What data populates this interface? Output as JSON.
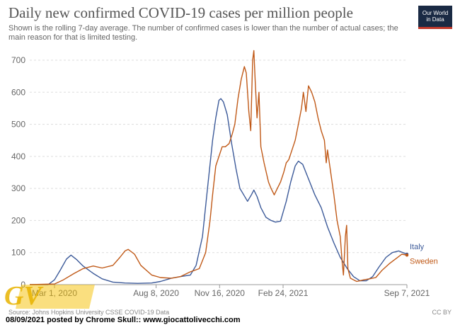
{
  "header": {
    "title": "Daily new confirmed COVID-19 cases per million people",
    "subtitle": "Shown is the rolling 7-day average. The number of confirmed cases is lower than the number of actual cases; the main reason for that is limited testing.",
    "logo_line1": "Our World",
    "logo_line2": "in Data"
  },
  "footer": {
    "source": "Source: Johns Hopkins University CSSE COVID-19 Data",
    "license": "CC BY",
    "credit": "08/09/2021 posted by Chrome Skull:: www.giocattolivecchi.com",
    "watermark": "GV"
  },
  "colors": {
    "italy": "#3c5a99",
    "sweden": "#c05917",
    "grid": "#dddddd",
    "axis_text": "#666666"
  },
  "chart_data": {
    "type": "line",
    "title": "Daily new confirmed COVID-19 cases per million people",
    "ylim": [
      0,
      700
    ],
    "yticks": [
      0,
      100,
      200,
      300,
      400,
      500,
      600,
      700
    ],
    "xlim": [
      "2020-01-22",
      "2021-09-07"
    ],
    "xticks": [
      {
        "date": "2020-03-01",
        "label": "Mar 1, 2020"
      },
      {
        "date": "2020-08-08",
        "label": "Aug 8, 2020"
      },
      {
        "date": "2020-11-16",
        "label": "Nov 16, 2020"
      },
      {
        "date": "2021-02-24",
        "label": "Feb 24, 2021"
      },
      {
        "date": "2021-09-07",
        "label": "Sep 7, 2021"
      }
    ],
    "grid": "horizontal dashed",
    "legend": "line-end labels",
    "series": [
      {
        "name": "Italy",
        "color": "#3c5a99",
        "points": [
          [
            "2020-01-22",
            0
          ],
          [
            "2020-02-20",
            0
          ],
          [
            "2020-03-01",
            15
          ],
          [
            "2020-03-10",
            45
          ],
          [
            "2020-03-20",
            80
          ],
          [
            "2020-03-27",
            92
          ],
          [
            "2020-04-05",
            78
          ],
          [
            "2020-04-15",
            58
          ],
          [
            "2020-05-01",
            35
          ],
          [
            "2020-05-15",
            18
          ],
          [
            "2020-06-01",
            8
          ],
          [
            "2020-06-20",
            5
          ],
          [
            "2020-07-10",
            4
          ],
          [
            "2020-08-01",
            5
          ],
          [
            "2020-08-15",
            10
          ],
          [
            "2020-09-01",
            20
          ],
          [
            "2020-09-15",
            25
          ],
          [
            "2020-10-01",
            30
          ],
          [
            "2020-10-10",
            60
          ],
          [
            "2020-10-20",
            150
          ],
          [
            "2020-10-28",
            300
          ],
          [
            "2020-11-05",
            450
          ],
          [
            "2020-11-10",
            520
          ],
          [
            "2020-11-15",
            575
          ],
          [
            "2020-11-18",
            580
          ],
          [
            "2020-11-22",
            570
          ],
          [
            "2020-11-28",
            530
          ],
          [
            "2020-12-05",
            440
          ],
          [
            "2020-12-12",
            360
          ],
          [
            "2020-12-18",
            300
          ],
          [
            "2020-12-24",
            280
          ],
          [
            "2020-12-30",
            260
          ],
          [
            "2021-01-05",
            280
          ],
          [
            "2021-01-09",
            295
          ],
          [
            "2021-01-14",
            275
          ],
          [
            "2021-01-20",
            240
          ],
          [
            "2021-01-28",
            210
          ],
          [
            "2021-02-05",
            200
          ],
          [
            "2021-02-12",
            195
          ],
          [
            "2021-02-20",
            198
          ],
          [
            "2021-03-01",
            260
          ],
          [
            "2021-03-08",
            320
          ],
          [
            "2021-03-15",
            370
          ],
          [
            "2021-03-20",
            385
          ],
          [
            "2021-03-27",
            375
          ],
          [
            "2021-04-05",
            330
          ],
          [
            "2021-04-15",
            280
          ],
          [
            "2021-04-25",
            240
          ],
          [
            "2021-05-05",
            180
          ],
          [
            "2021-05-15",
            130
          ],
          [
            "2021-05-25",
            85
          ],
          [
            "2021-06-05",
            50
          ],
          [
            "2021-06-15",
            25
          ],
          [
            "2021-06-25",
            12
          ],
          [
            "2021-07-05",
            12
          ],
          [
            "2021-07-15",
            25
          ],
          [
            "2021-07-25",
            55
          ],
          [
            "2021-08-05",
            85
          ],
          [
            "2021-08-15",
            100
          ],
          [
            "2021-08-25",
            105
          ],
          [
            "2021-09-07",
            95
          ]
        ]
      },
      {
        "name": "Sweden",
        "color": "#c05917",
        "points": [
          [
            "2020-01-22",
            0
          ],
          [
            "2020-03-01",
            2
          ],
          [
            "2020-03-15",
            15
          ],
          [
            "2020-04-01",
            35
          ],
          [
            "2020-04-15",
            50
          ],
          [
            "2020-05-01",
            58
          ],
          [
            "2020-05-15",
            52
          ],
          [
            "2020-06-01",
            60
          ],
          [
            "2020-06-12",
            85
          ],
          [
            "2020-06-20",
            105
          ],
          [
            "2020-06-25",
            110
          ],
          [
            "2020-07-05",
            95
          ],
          [
            "2020-07-15",
            60
          ],
          [
            "2020-08-01",
            30
          ],
          [
            "2020-08-15",
            22
          ],
          [
            "2020-09-01",
            20
          ],
          [
            "2020-09-15",
            25
          ],
          [
            "2020-10-01",
            40
          ],
          [
            "2020-10-15",
            50
          ],
          [
            "2020-10-25",
            100
          ],
          [
            "2020-11-01",
            200
          ],
          [
            "2020-11-05",
            280
          ],
          [
            "2020-11-10",
            370
          ],
          [
            "2020-11-15",
            400
          ],
          [
            "2020-11-20",
            430
          ],
          [
            "2020-11-25",
            430
          ],
          [
            "2020-12-01",
            440
          ],
          [
            "2020-12-06",
            470
          ],
          [
            "2020-12-10",
            500
          ],
          [
            "2020-12-15",
            580
          ],
          [
            "2020-12-20",
            640
          ],
          [
            "2020-12-25",
            680
          ],
          [
            "2020-12-28",
            660
          ],
          [
            "2021-01-01",
            540
          ],
          [
            "2021-01-04",
            480
          ],
          [
            "2021-01-07",
            700
          ],
          [
            "2021-01-09",
            730
          ],
          [
            "2021-01-11",
            640
          ],
          [
            "2021-01-14",
            520
          ],
          [
            "2021-01-17",
            600
          ],
          [
            "2021-01-20",
            430
          ],
          [
            "2021-01-25",
            380
          ],
          [
            "2021-02-01",
            320
          ],
          [
            "2021-02-05",
            300
          ],
          [
            "2021-02-10",
            280
          ],
          [
            "2021-02-15",
            300
          ],
          [
            "2021-02-20",
            320
          ],
          [
            "2021-02-25",
            350
          ],
          [
            "2021-03-01",
            380
          ],
          [
            "2021-03-05",
            390
          ],
          [
            "2021-03-10",
            420
          ],
          [
            "2021-03-15",
            450
          ],
          [
            "2021-03-20",
            500
          ],
          [
            "2021-03-25",
            550
          ],
          [
            "2021-03-28",
            600
          ],
          [
            "2021-04-01",
            540
          ],
          [
            "2021-04-05",
            620
          ],
          [
            "2021-04-10",
            600
          ],
          [
            "2021-04-15",
            570
          ],
          [
            "2021-04-20",
            520
          ],
          [
            "2021-04-25",
            480
          ],
          [
            "2021-04-30",
            450
          ],
          [
            "2021-05-03",
            380
          ],
          [
            "2021-05-05",
            420
          ],
          [
            "2021-05-10",
            350
          ],
          [
            "2021-05-15",
            280
          ],
          [
            "2021-05-20",
            200
          ],
          [
            "2021-05-25",
            150
          ],
          [
            "2021-05-28",
            70
          ],
          [
            "2021-05-30",
            30
          ],
          [
            "2021-06-02",
            150
          ],
          [
            "2021-06-04",
            185
          ],
          [
            "2021-06-06",
            50
          ],
          [
            "2021-06-10",
            20
          ],
          [
            "2021-06-15",
            15
          ],
          [
            "2021-06-20",
            10
          ],
          [
            "2021-07-01",
            15
          ],
          [
            "2021-07-10",
            18
          ],
          [
            "2021-07-20",
            22
          ],
          [
            "2021-07-30",
            45
          ],
          [
            "2021-08-10",
            65
          ],
          [
            "2021-08-20",
            80
          ],
          [
            "2021-08-30",
            95
          ],
          [
            "2021-09-07",
            92
          ]
        ]
      }
    ]
  }
}
